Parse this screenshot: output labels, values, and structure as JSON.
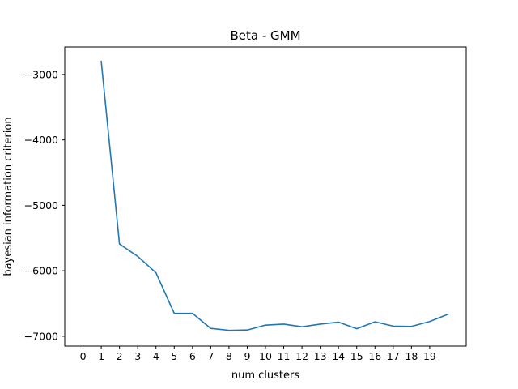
{
  "chart_data": {
    "type": "line",
    "title": "Beta - GMM",
    "xlabel": "num clusters",
    "ylabel": "bayesian information criterion",
    "xlim": [
      -1,
      21
    ],
    "ylim": [
      -7150,
      -2580
    ],
    "xticks": [
      0,
      1,
      2,
      3,
      4,
      5,
      6,
      7,
      8,
      9,
      10,
      11,
      12,
      13,
      14,
      15,
      16,
      17,
      18,
      19
    ],
    "yticks": [
      -3000,
      -4000,
      -5000,
      -6000,
      -7000
    ],
    "ytick_labels": [
      "−3000",
      "−4000",
      "−5000",
      "−6000",
      "−7000"
    ],
    "grid": false,
    "series": [
      {
        "color": "#1f77b4",
        "x": [
          1,
          2,
          3,
          4,
          5,
          6,
          7,
          8,
          9,
          10,
          11,
          12,
          13,
          14,
          15,
          16,
          17,
          18,
          19,
          20
        ],
        "y": [
          -2800,
          -5590,
          -5780,
          -6030,
          -6650,
          -6650,
          -6880,
          -6910,
          -6905,
          -6830,
          -6815,
          -6855,
          -6815,
          -6785,
          -6885,
          -6780,
          -6845,
          -6850,
          -6775,
          -6665
        ]
      }
    ]
  }
}
